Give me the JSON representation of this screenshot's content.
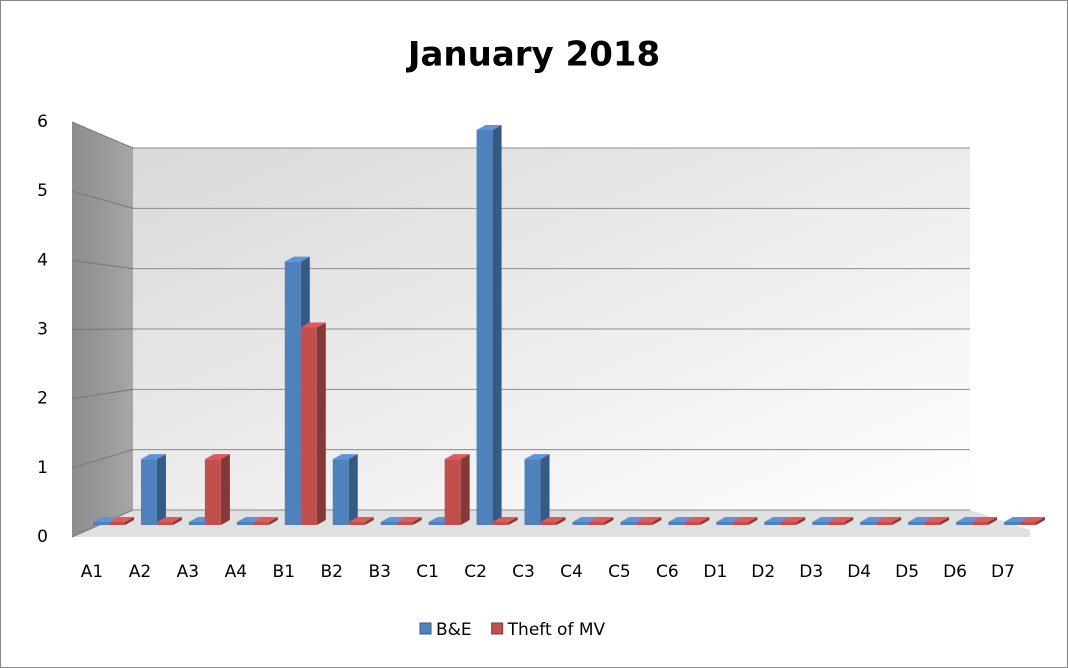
{
  "chart_data": {
    "type": "bar3d",
    "title": "January 2018",
    "categories": [
      "A1",
      "A2",
      "A3",
      "A4",
      "B1",
      "B2",
      "B3",
      "C1",
      "C2",
      "C3",
      "C4",
      "C5",
      "C6",
      "D1",
      "D2",
      "D3",
      "D4",
      "D5",
      "D6",
      "D7"
    ],
    "series": [
      {
        "name": "B&E",
        "color": "#4f81bd",
        "values": [
          0,
          1,
          0,
          0,
          4,
          1,
          0,
          0,
          6,
          1,
          0,
          0,
          0,
          0,
          0,
          0,
          0,
          0,
          0,
          0
        ]
      },
      {
        "name": "Theft of MV",
        "color": "#c0504d",
        "values": [
          0,
          0,
          1,
          0,
          3,
          0,
          0,
          1,
          0,
          0,
          0,
          0,
          0,
          0,
          0,
          0,
          0,
          0,
          0,
          0
        ]
      }
    ],
    "ylim": [
      0,
      6
    ],
    "yticks": [
      0,
      1,
      2,
      3,
      4,
      5,
      6
    ],
    "grid": true,
    "legend": "bottom"
  }
}
